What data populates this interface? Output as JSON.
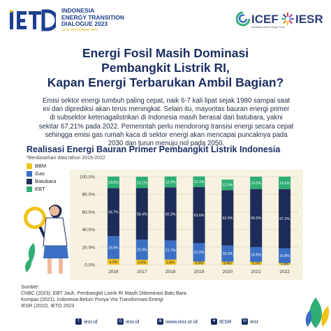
{
  "header": {
    "event_abbr": "IETD",
    "event_name_lines": [
      "INDONESIA",
      "ENERGY TRANSITION",
      "DIALOGUE 2023"
    ],
    "event_dates": "18-20 SEPTEMBER 2023",
    "partner1": "ICEF",
    "partner1_tagline": "Indonesia Clean Energy Forum",
    "partner2": "IESR"
  },
  "headline_lines": [
    "Energi Fosil Masih Dominasi",
    "Pembangkit Listrik RI,",
    "Kapan Energi Terbarukan Ambil Bagian?"
  ],
  "body_lines": [
    "Emisi sektor energi tumbuh paling cepat, naik 6-7 kali lipat sejak 1980 sampai saat",
    "ini dan diprediksi akan terus meningkat. Selain itu, mayoritas bauran energi primer",
    "di subsektor ketenagalistrikan di Indonesia masih berasal dari batubara, yakni",
    "sekitar 67,21% pada 2022. Pemerintah perlu mendorong transisi energi secara cepat",
    "sehingga emisi gas rumah kaca di sektor energi  akan mencapai puncaknya pada",
    "2030 dan turun menuju nol pada 2050."
  ],
  "colors": {
    "bbm": "#f2c318",
    "gas": "#3a6fc4",
    "batubara": "#1e2c5a",
    "ebt": "#2fae74",
    "headline": "#1a2e63",
    "panel_bg": "#f7f2df"
  },
  "chart_data": {
    "type": "bar",
    "stacked": true,
    "title": "Realisasi Energi Bauran Primer Pembangkit Listrik Indonesia",
    "note": "*Berdasarkan data tahun 2016-2022",
    "categories": [
      "2016",
      "2017",
      "2018",
      "2019",
      "2020",
      "2021",
      "2022"
    ],
    "ylim": [
      0,
      100
    ],
    "yticks": [
      "0.0%",
      "20.0%",
      "40.0%",
      "60.0%",
      "80.0%",
      "100.0%"
    ],
    "grid": true,
    "legend_position": "top-left",
    "series": [
      {
        "name": "BBM",
        "color_key": "bbm",
        "values": [
          6.5,
          5.6,
          5.8,
          3.6,
          3.4,
          3.2,
          1.9
        ],
        "labels": [
          "6.5%",
          "5.6%",
          "5.8%",
          "3.6%",
          "3.4%",
          "3.2%",
          "1.9%"
        ]
      },
      {
        "name": "Gas",
        "color_key": "gas",
        "values": [
          25.9,
          22.9,
          21.7,
          21.0,
          18.3,
          16.8,
          16.8
        ],
        "labels": [
          "25.9%",
          "22.9%",
          "21.7%",
          "21.0%",
          "18.3%",
          "16.8%",
          "16.8%"
        ]
      },
      {
        "name": "Batubara",
        "color_key": "batubara",
        "values": [
          54.7,
          58.4,
          60.3,
          63.6,
          63.0,
          66.0,
          67.2
        ],
        "labels": [
          "54.7%",
          "58.4%",
          "60.3%",
          "63.6%",
          "63.0%",
          "66.0%",
          "67.2%"
        ]
      },
      {
        "name": "EBT",
        "color_key": "ebt",
        "values": [
          13.0,
          13.1,
          12.4,
          12.1,
          12.0,
          14.0,
          14.1
        ],
        "labels": [
          "13.0%",
          "13.1%",
          "12.4%",
          "12.1%",
          "12.0%",
          "14.0%",
          "14.1%"
        ]
      }
    ]
  },
  "sources": [
    "Sumber:",
    "CNBC (2023). EBT Jauh, Pembangkit Listrik RI Masih Didominasi Batu Bara",
    "Kompas (2021). Indonesia Belum Punya Visi Transformasi Energi",
    "IESR (2022). IETO 2023"
  ],
  "footer_links": [
    {
      "icon": "facebook-icon",
      "glyph": "f",
      "text": "iesr.id"
    },
    {
      "icon": "instagram-icon",
      "glyph": "◎",
      "text": "iesr.id"
    },
    {
      "icon": "globe-icon",
      "glyph": "⊕",
      "text": "www.iesr.or.id"
    },
    {
      "icon": "twitter-icon",
      "glyph": "✦",
      "text": "IESR"
    },
    {
      "icon": "linkedin-icon",
      "glyph": "in",
      "text": "iesr"
    }
  ]
}
